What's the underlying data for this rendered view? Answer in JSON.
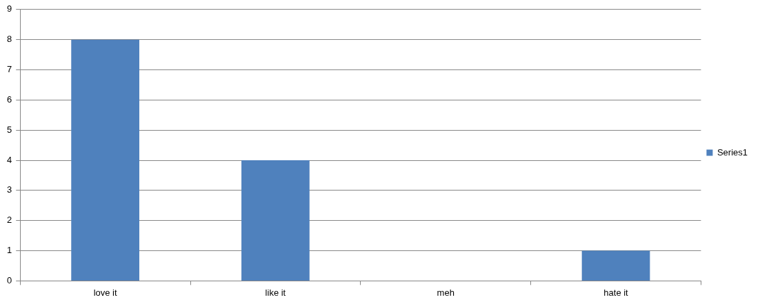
{
  "chart_data": {
    "type": "bar",
    "categories": [
      "love it",
      "like it",
      "meh",
      "hate it"
    ],
    "series": [
      {
        "name": "Series1",
        "color": "#4f81bd",
        "values": [
          8,
          4,
          0,
          1
        ]
      }
    ],
    "ylim": [
      0,
      9
    ],
    "yticks": [
      0,
      1,
      2,
      3,
      4,
      5,
      6,
      7,
      8,
      9
    ],
    "grid": "y",
    "legend": "right"
  }
}
